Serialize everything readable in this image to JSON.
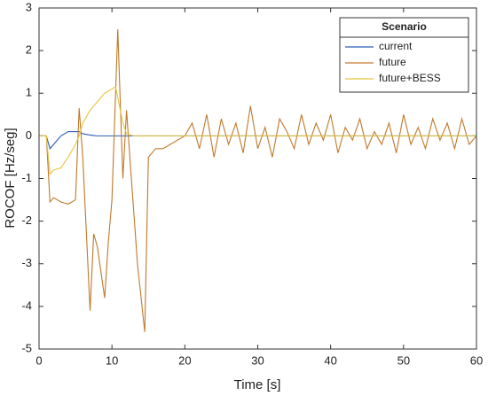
{
  "chart_data": {
    "type": "line",
    "xlabel": "Time [s]",
    "ylabel": "ROCOF [Hz/seg]",
    "legend_title": "Scenario",
    "legend": "northeast",
    "x": [
      0,
      1,
      1.5,
      2,
      3,
      4,
      5,
      5.5,
      6,
      7,
      7.5,
      8,
      9,
      9.5,
      10,
      10.5,
      10.8,
      11.5,
      12,
      13,
      13.5,
      14.5,
      15,
      16,
      17,
      18,
      19,
      20,
      21,
      22,
      23,
      24,
      25,
      26,
      27,
      28,
      29,
      30,
      31,
      32,
      33,
      34,
      35,
      36,
      37,
      38,
      39,
      40,
      41,
      42,
      43,
      44,
      45,
      46,
      47,
      48,
      49,
      50,
      51,
      52,
      53,
      54,
      55,
      56,
      57,
      58,
      59,
      60
    ],
    "series": [
      {
        "name": "current",
        "color": "#2b5fb4",
        "values": [
          0,
          0,
          -0.3,
          -0.2,
          0,
          0.1,
          0.1,
          0.1,
          0.05,
          0.02,
          0.01,
          0,
          0,
          0,
          0,
          0,
          0,
          0,
          0,
          0,
          0,
          0,
          0,
          0,
          0,
          0,
          0,
          0,
          0,
          0,
          0,
          0,
          0,
          0,
          0,
          0,
          0,
          0,
          0,
          0,
          0,
          0,
          0,
          0,
          0,
          0,
          0,
          0,
          0,
          0,
          0,
          0,
          0,
          0,
          0,
          0,
          0,
          0,
          0,
          0,
          0,
          0,
          0,
          0,
          0,
          0,
          0,
          0
        ]
      },
      {
        "name": "future",
        "color": "#c0792a",
        "values": [
          0,
          0,
          -1.55,
          -1.45,
          -1.55,
          -1.6,
          -1.5,
          0.65,
          -0.5,
          -4.1,
          -2.3,
          -2.6,
          -3.8,
          -2.5,
          -1.5,
          1.0,
          2.5,
          -1,
          0.6,
          -1.8,
          -3,
          -4.6,
          -0.5,
          -0.3,
          -0.3,
          -0.2,
          -0.1,
          0,
          0.3,
          -0.3,
          0.5,
          -0.5,
          0.4,
          -0.2,
          0.3,
          -0.4,
          0.7,
          -0.3,
          0.2,
          -0.5,
          0.4,
          0.1,
          -0.3,
          0.5,
          -0.2,
          0.3,
          -0.1,
          0.5,
          -0.4,
          0.2,
          -0.1,
          0.4,
          -0.3,
          0.1,
          -0.2,
          0.3,
          -0.4,
          0.5,
          -0.2,
          0.2,
          -0.3,
          0.4,
          -0.1,
          0.3,
          -0.3,
          0.4,
          -0.2,
          0
        ]
      },
      {
        "name": "future+BESS",
        "color": "#e6c53a",
        "values": [
          0,
          0,
          -0.9,
          -0.8,
          -0.75,
          -0.5,
          -0.2,
          0,
          0.3,
          0.6,
          0.7,
          0.8,
          1.0,
          1.05,
          1.1,
          1.15,
          0.9,
          0.3,
          0.05,
          0,
          0,
          0,
          0,
          0,
          0,
          0,
          0,
          0,
          0,
          0,
          0,
          0,
          0,
          0,
          0,
          0,
          0,
          0,
          0,
          0,
          0,
          0,
          0,
          0,
          0,
          0,
          0,
          0,
          0,
          0,
          0,
          0,
          0,
          0,
          0,
          0,
          0,
          0,
          0,
          0,
          0,
          0,
          0,
          0,
          0,
          0,
          0,
          0
        ]
      }
    ],
    "xlim": [
      0,
      60
    ],
    "xticks": [
      0,
      10,
      20,
      30,
      40,
      50,
      60
    ],
    "ylim": [
      -5,
      3
    ],
    "yticks": [
      -5,
      -4,
      -3,
      -2,
      -1,
      0,
      1,
      2,
      3
    ]
  }
}
